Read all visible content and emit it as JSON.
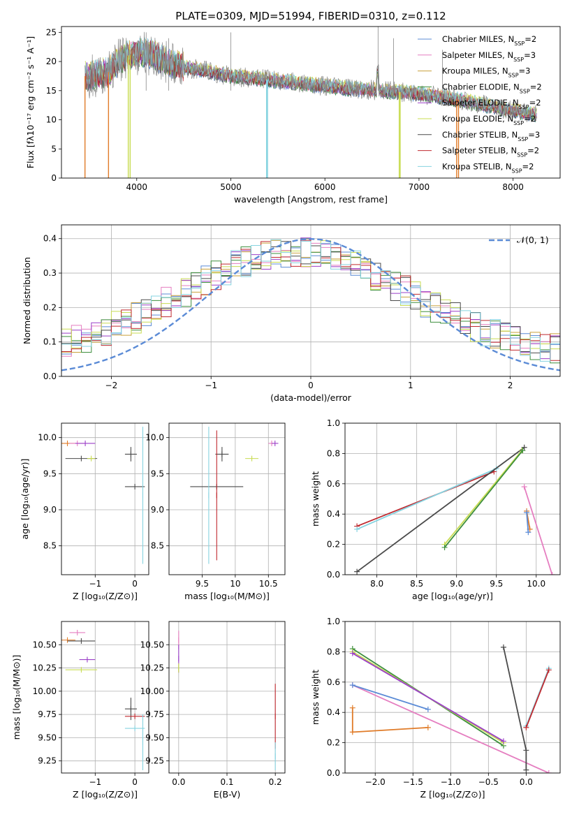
{
  "figure_title": "PLATE=0309, MJD=51994, FIBERID=0310, z=0.112",
  "colors": {
    "c1": "#5b8bd6",
    "c2": "#e57ec0",
    "c3": "#c9a13a",
    "c4": "#3e8f3e",
    "c5": "#9b3fc8",
    "c6": "#c8dc52",
    "c7": "#4a4a4a",
    "c8": "#c0292f",
    "c9": "#86d3e0",
    "orange": "#e07b28",
    "gray": "#888888",
    "dash": "#5b8bd6"
  },
  "chart_data": [
    {
      "id": "spectrum",
      "type": "line",
      "title": "",
      "xlabel": "wavelength [Angstrom, rest frame]",
      "ylabel": "Flux [fλ10⁻¹⁷ erg cm⁻² s⁻¹ A⁻¹]",
      "xlim": [
        3200,
        8500
      ],
      "ylim": [
        0,
        26
      ],
      "xticks": [
        4000,
        5000,
        6000,
        7000,
        8000
      ],
      "yticks": [
        0,
        5,
        10,
        15,
        20,
        25
      ],
      "grid": false,
      "legend_position": "top-right",
      "legend": [
        {
          "label": "Chabrier MILES, N",
          "sub": "SSP",
          "suffix": "=2",
          "color": "#5b8bd6"
        },
        {
          "label": "Salpeter MILES, N",
          "sub": "SSP",
          "suffix": "=3",
          "color": "#e57ec0"
        },
        {
          "label": "Kroupa MILES, N",
          "sub": "SSP",
          "suffix": "=3",
          "color": "#c9a13a"
        },
        {
          "label": "Chabrier ELODIE, N",
          "sub": "SSP",
          "suffix": "=2",
          "color": "#3e8f3e"
        },
        {
          "label": "Salpeter ELODIE, N",
          "sub": "SSP",
          "suffix": "=2",
          "color": "#9b3fc8"
        },
        {
          "label": "Kroupa ELODIE, N",
          "sub": "SSP",
          "suffix": "=2",
          "color": "#c8dc52"
        },
        {
          "label": "Chabrier STELIB, N",
          "sub": "SSP",
          "suffix": "=3",
          "color": "#4a4a4a"
        },
        {
          "label": "Salpeter STELIB, N",
          "sub": "SSP",
          "suffix": "=2",
          "color": "#c0292f"
        },
        {
          "label": "Kroupa STELIB, N",
          "sub": "SSP",
          "suffix": "=2",
          "color": "#86d3e0"
        }
      ],
      "continuum": {
        "x": [
          3450,
          3500,
          3600,
          3700,
          3800,
          3900,
          4000,
          4100,
          4200,
          4300,
          4400,
          4500,
          4700,
          5000,
          5300,
          5600,
          6000,
          6300,
          6600,
          7000,
          7400,
          7800,
          8000,
          8200,
          8250
        ],
        "y": [
          17.5,
          17.5,
          17.8,
          18.2,
          20,
          21,
          21.5,
          21.5,
          21,
          20,
          19.5,
          19,
          18.5,
          17.5,
          17,
          16.5,
          15.8,
          15.3,
          15,
          14.5,
          13.5,
          12.2,
          11.5,
          11,
          10.8
        ]
      },
      "dips": [
        {
          "color": "#e07b28",
          "x": [
            3450,
            3700
          ],
          "to": 0
        },
        {
          "color": "#c8dc52",
          "x": [
            3910,
            3930
          ],
          "to": 0
        },
        {
          "color": "#86d3e0",
          "x": [
            5380,
            5390
          ],
          "to": 0
        },
        {
          "color": "#c8dc52",
          "x": [
            6790,
            6800
          ],
          "to": 0
        },
        {
          "color": "#e07b28",
          "x": [
            7400,
            7420
          ],
          "to": 0
        }
      ]
    },
    {
      "id": "residuals",
      "type": "step",
      "xlabel": "(data-model)/error",
      "ylabel": "Normed distribution",
      "xlim": [
        -2.5,
        2.5
      ],
      "ylim": [
        0,
        0.44
      ],
      "xticks": [
        -2,
        -1,
        0,
        1,
        2
      ],
      "yticks": [
        0.0,
        0.1,
        0.2,
        0.3,
        0.4
      ],
      "grid": true,
      "legend_position": "top-right",
      "legend": [
        {
          "label": "𝒩(0, 1)",
          "color": "#5b8bd6",
          "style": "dashed"
        }
      ],
      "gaussian": {
        "mean": 0,
        "sigma": 1
      }
    },
    {
      "id": "age-vs-Z",
      "type": "errorbar",
      "xlabel": "Z [log₁₀(Z/Z⊙)]",
      "ylabel": "age  [log₁₀(age/yr)]",
      "xlim": [
        -1.85,
        0.35
      ],
      "ylim": [
        8.1,
        10.2
      ],
      "xticks": [
        -1,
        0
      ],
      "yticks": [
        8.5,
        9.0,
        9.5,
        10.0
      ],
      "grid": true,
      "points": [
        {
          "x": -1.7,
          "y": 9.92,
          "xerr": 0.2,
          "color": "#e07b28"
        },
        {
          "x": -1.45,
          "y": 9.92,
          "xerr": 0.2,
          "color": "#e57ec0"
        },
        {
          "x": -1.25,
          "y": 9.92,
          "xerr": 0.25,
          "color": "#9b3fc8"
        },
        {
          "x": -1.35,
          "y": 9.71,
          "xerr": 0.4,
          "color": "#4a4a4a"
        },
        {
          "x": -1.1,
          "y": 9.71,
          "xerr": 0.1,
          "color": "#c8dc52"
        },
        {
          "x": -0.1,
          "y": 9.77,
          "xerr": 0.15,
          "yerr": 0.1,
          "color": "#4a4a4a"
        },
        {
          "x": 0.0,
          "y": 9.32,
          "xerr": 0.25,
          "color": "#4a4a4a"
        },
        {
          "x": 0.2,
          "y": 9.2,
          "yerr": 0.95,
          "color": "#86d3e0"
        }
      ]
    },
    {
      "id": "age-vs-mass",
      "type": "errorbar",
      "xlabel": "mass [log₁₀(M/M⊙)]",
      "ylabel": "",
      "xlim": [
        9.0,
        10.75
      ],
      "ylim": [
        8.1,
        10.2
      ],
      "xticks": [
        9.5,
        10.0,
        10.5
      ],
      "yticks": [
        8.5,
        9.0,
        9.5,
        10.0
      ],
      "grid": true,
      "points": [
        {
          "x": 9.8,
          "y": 9.77,
          "xerr": 0.1,
          "yerr": 0.1,
          "color": "#4a4a4a"
        },
        {
          "x": 9.72,
          "y": 9.32,
          "xerr": 0.4,
          "color": "#4a4a4a"
        },
        {
          "x": 9.72,
          "y": 9.2,
          "yerr": 0.9,
          "color": "#c0292f"
        },
        {
          "x": 9.6,
          "y": 9.2,
          "yerr": 0.95,
          "color": "#86d3e0"
        },
        {
          "x": 10.25,
          "y": 9.71,
          "xerr": 0.1,
          "color": "#c8dc52"
        },
        {
          "x": 10.55,
          "y": 9.92,
          "xerr": 0.05,
          "color": "#e57ec0"
        },
        {
          "x": 10.6,
          "y": 9.92,
          "xerr": 0.05,
          "color": "#9b3fc8"
        }
      ]
    },
    {
      "id": "weight-vs-age",
      "type": "line",
      "xlabel": "age  [log₁₀(age/yr)]",
      "ylabel": "mass weight",
      "xlim": [
        7.6,
        10.3
      ],
      "ylim": [
        0,
        1
      ],
      "xticks": [
        8.0,
        8.5,
        9.0,
        9.5,
        10.0
      ],
      "yticks": [
        0.0,
        0.2,
        0.4,
        0.6,
        0.8,
        1.0
      ],
      "grid": true,
      "series": [
        {
          "color": "#c0292f",
          "x": [
            7.75,
            9.47
          ],
          "y": [
            0.32,
            0.68
          ]
        },
        {
          "color": "#86d3e0",
          "x": [
            7.75,
            9.5
          ],
          "y": [
            0.3,
            0.7
          ]
        },
        {
          "color": "#4a4a4a",
          "x": [
            7.75,
            9.85
          ],
          "y": [
            0.02,
            0.84
          ]
        },
        {
          "color": "#c8dc52",
          "x": [
            8.85,
            9.82
          ],
          "y": [
            0.2,
            0.82
          ]
        },
        {
          "color": "#3e8f3e",
          "x": [
            8.85,
            9.83
          ],
          "y": [
            0.18,
            0.82
          ]
        },
        {
          "color": "#e57ec0",
          "x": [
            9.85,
            10.2
          ],
          "y": [
            0.58,
            0.0
          ]
        },
        {
          "color": "#e07b28",
          "x": [
            9.88,
            9.92
          ],
          "y": [
            0.42,
            0.3
          ]
        },
        {
          "color": "#5b8bd6",
          "x": [
            9.88,
            9.9
          ],
          "y": [
            0.41,
            0.28
          ]
        }
      ]
    },
    {
      "id": "mass-vs-Z",
      "type": "errorbar",
      "xlabel": "Z [log₁₀(Z/Z⊙)]",
      "ylabel": "mass [log₁₀(M/M⊙)]",
      "xlim": [
        -1.85,
        0.35
      ],
      "ylim": [
        9.12,
        10.75
      ],
      "xticks": [
        -1,
        0
      ],
      "yticks": [
        9.25,
        9.5,
        9.75,
        10.0,
        10.25,
        10.5
      ],
      "grid": true,
      "points": [
        {
          "x": -1.7,
          "y": 10.55,
          "xerr": 0.2,
          "color": "#e07b28"
        },
        {
          "x": -1.45,
          "y": 10.63,
          "xerr": 0.2,
          "color": "#e57ec0"
        },
        {
          "x": -1.35,
          "y": 10.54,
          "xerr": 0.35,
          "color": "#4a4a4a"
        },
        {
          "x": -1.2,
          "y": 10.34,
          "xerr": 0.2,
          "color": "#9b3fc8"
        },
        {
          "x": -1.35,
          "y": 10.23,
          "xerr": 0.4,
          "color": "#c8dc52"
        },
        {
          "x": -0.1,
          "y": 9.81,
          "xerr": 0.15,
          "yerr": 0.12,
          "color": "#4a4a4a"
        },
        {
          "x": 0.0,
          "y": 9.73,
          "xerr": 0.25,
          "color": "#c0292f"
        },
        {
          "x": 0.0,
          "y": 9.6,
          "xerr": 0.25,
          "color": "#86d3e0"
        },
        {
          "x": 0.2,
          "y": 9.45,
          "yerr": 0.3,
          "color": "#86d3e0"
        }
      ]
    },
    {
      "id": "mass-vs-EBV",
      "type": "errorbar",
      "xlabel": "E(B-V)",
      "ylabel": "",
      "xlim": [
        -0.02,
        0.22
      ],
      "ylim": [
        9.12,
        10.75
      ],
      "xticks": [
        0.0,
        0.1,
        0.2
      ],
      "yticks": [
        9.25,
        9.5,
        9.75,
        10.0,
        10.25,
        10.5
      ],
      "grid": true,
      "points": [
        {
          "x": 0.0,
          "y": 10.55,
          "yerr": 0.1,
          "color": "#e57ec0"
        },
        {
          "x": 0.0,
          "y": 10.35,
          "yerr": 0.15,
          "color": "#9b3fc8"
        },
        {
          "x": 0.0,
          "y": 10.25,
          "yerr": 0.05,
          "color": "#c8dc52"
        },
        {
          "x": 0.2,
          "y": 9.73,
          "yerr": 0.35,
          "color": "#c0292f"
        },
        {
          "x": 0.2,
          "y": 9.3,
          "yerr": 0.15,
          "color": "#86d3e0"
        }
      ]
    },
    {
      "id": "weight-vs-Z",
      "type": "line",
      "xlabel": "Z [log₁₀(Z/Z⊙)]",
      "ylabel": "mass weight",
      "xlim": [
        -2.4,
        0.45
      ],
      "ylim": [
        0,
        1
      ],
      "xticks": [
        -2.0,
        -1.5,
        -1.0,
        -0.5,
        0.0
      ],
      "yticks": [
        0.0,
        0.2,
        0.4,
        0.6,
        0.8,
        1.0
      ],
      "grid": true,
      "series": [
        {
          "color": "#3e8f3e",
          "x": [
            -2.3,
            -0.3
          ],
          "y": [
            0.82,
            0.18
          ]
        },
        {
          "color": "#c8dc52",
          "x": [
            -2.3,
            -0.3
          ],
          "y": [
            0.8,
            0.2
          ]
        },
        {
          "color": "#9b3fc8",
          "x": [
            -2.3,
            -0.3
          ],
          "y": [
            0.79,
            0.21
          ]
        },
        {
          "color": "#e57ec0",
          "x": [
            -2.3,
            0.3
          ],
          "y": [
            0.58,
            0.0
          ]
        },
        {
          "color": "#5b8bd6",
          "x": [
            -2.3,
            -1.3
          ],
          "y": [
            0.58,
            0.42
          ]
        },
        {
          "color": "#e07b28",
          "x": [
            -2.3,
            -2.3,
            -1.3
          ],
          "y": [
            0.43,
            0.27,
            0.3
          ]
        },
        {
          "color": "#4a4a4a",
          "x": [
            -0.3,
            0.0,
            0.0
          ],
          "y": [
            0.83,
            0.15,
            0.02
          ]
        },
        {
          "color": "#86d3e0",
          "x": [
            0.0,
            0.3
          ],
          "y": [
            0.31,
            0.69
          ]
        },
        {
          "color": "#c0292f",
          "x": [
            0.0,
            0.3
          ],
          "y": [
            0.3,
            0.68
          ]
        }
      ]
    }
  ]
}
